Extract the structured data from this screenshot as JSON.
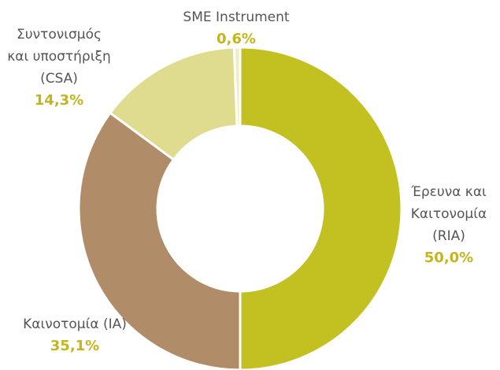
{
  "chart_data": {
    "type": "pie",
    "categories": [
      "Έρευνα και Καιτονομία (RIA)",
      "Καινοτομία (IA)",
      "Συντονισμός και υποστήριξη (CSA)",
      "SME Instrument"
    ],
    "values": [
      50.0,
      35.1,
      14.3,
      0.6
    ],
    "value_labels": [
      "50,0%",
      "35,1%",
      "14,3%",
      "0,6%"
    ],
    "colors": [
      "#c3c021",
      "#b08c68",
      "#dfdc8f",
      "#efedc9"
    ]
  }
}
